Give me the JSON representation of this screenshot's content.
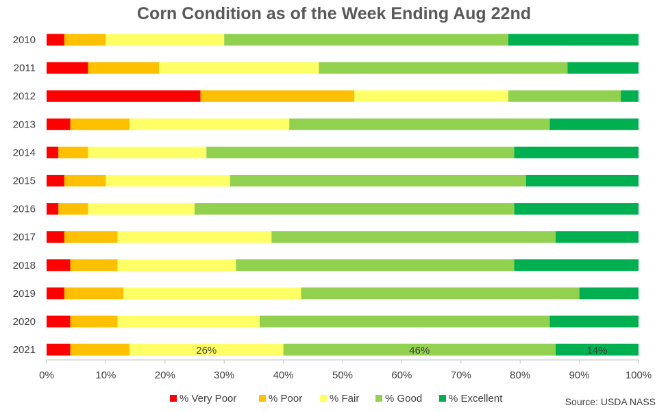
{
  "chart_data": {
    "type": "bar",
    "orientation": "horizontal",
    "stacked": "percent",
    "title": "Corn Condition as of the Week Ending Aug 22nd",
    "source": "Source: USDA NASS",
    "categories": [
      "2010",
      "2011",
      "2012",
      "2013",
      "2014",
      "2015",
      "2016",
      "2017",
      "2018",
      "2019",
      "2020",
      "2021"
    ],
    "xlim": [
      0,
      100
    ],
    "x_ticks": [
      "0%",
      "10%",
      "20%",
      "30%",
      "40%",
      "50%",
      "60%",
      "70%",
      "80%",
      "90%",
      "100%"
    ],
    "grid": false,
    "legend_position": "bottom",
    "series": [
      {
        "name": "% Very Poor",
        "color": "#ff0000",
        "values": [
          3,
          7,
          26,
          4,
          2,
          3,
          2,
          3,
          4,
          3,
          4,
          4
        ]
      },
      {
        "name": "% Poor",
        "color": "#ffc000",
        "values": [
          7,
          12,
          26,
          10,
          5,
          7,
          5,
          9,
          8,
          10,
          8,
          10
        ]
      },
      {
        "name": "% Fair",
        "color": "#ffff66",
        "values": [
          20,
          27,
          26,
          27,
          20,
          21,
          18,
          26,
          20,
          30,
          24,
          26
        ]
      },
      {
        "name": "% Good",
        "color": "#92d050",
        "values": [
          48,
          42,
          19,
          44,
          52,
          50,
          54,
          48,
          47,
          47,
          49,
          46
        ]
      },
      {
        "name": "% Excellent",
        "color": "#00b050",
        "values": [
          22,
          12,
          3,
          15,
          21,
          19,
          21,
          14,
          21,
          10,
          15,
          14
        ]
      }
    ],
    "data_labels": [
      {
        "category": "2021",
        "series": "% Fair",
        "text": "26%"
      },
      {
        "category": "2021",
        "series": "% Good",
        "text": "46%"
      },
      {
        "category": "2021",
        "series": "% Excellent",
        "text": "14%"
      }
    ]
  }
}
